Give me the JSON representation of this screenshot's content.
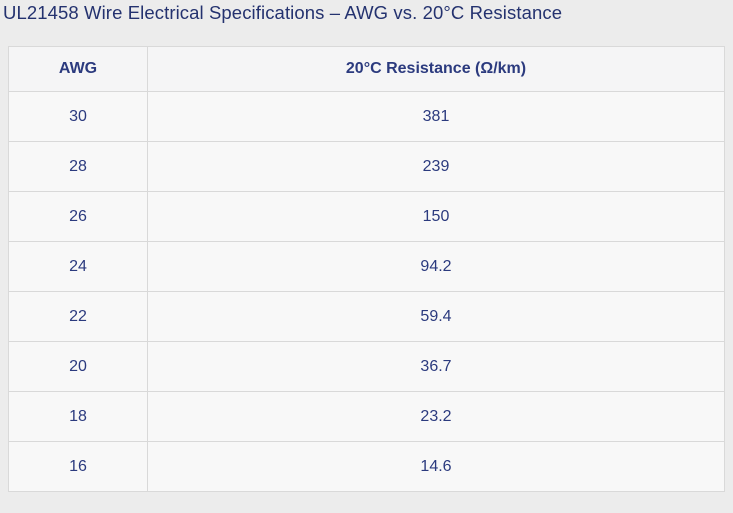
{
  "page": {
    "title": "UL21458 Wire Electrical Specifications – AWG vs. 20°C Resistance"
  },
  "table": {
    "headers": {
      "awg": "AWG",
      "resistance": "20°C Resistance (Ω/km)"
    },
    "rows": [
      {
        "awg": "30",
        "resistance": "381"
      },
      {
        "awg": "28",
        "resistance": "239"
      },
      {
        "awg": "26",
        "resistance": "150"
      },
      {
        "awg": "24",
        "resistance": "94.2"
      },
      {
        "awg": "22",
        "resistance": "59.4"
      },
      {
        "awg": "20",
        "resistance": "36.7"
      },
      {
        "awg": "18",
        "resistance": "23.2"
      },
      {
        "awg": "16",
        "resistance": "14.6"
      }
    ]
  },
  "colors": {
    "page_bg": "#ececec",
    "row_bg": "#f8f8f8",
    "header_bg": "#f5f5f6",
    "border": "#d9d9d9",
    "text_navy": "#2b3a7e",
    "title_navy": "#24326f"
  }
}
